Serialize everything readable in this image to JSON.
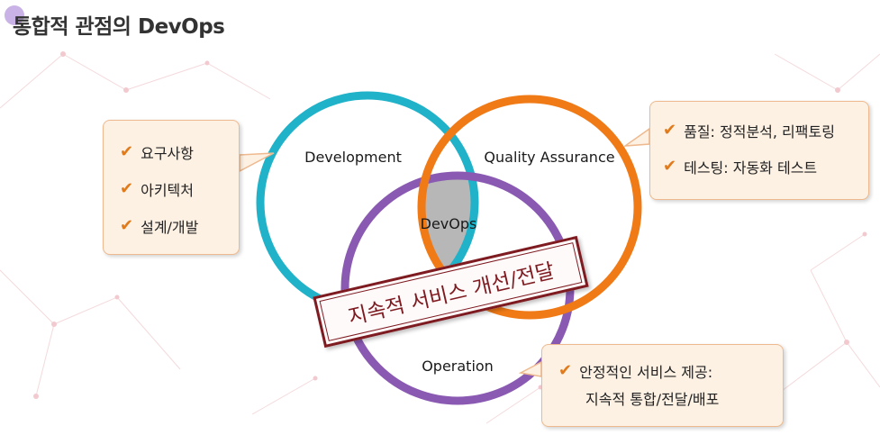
{
  "title": "통합적 관점의 DevOps",
  "venn": {
    "development": "Development",
    "quality_assurance": "Quality Assurance",
    "operation": "Operation",
    "center": "DevOps"
  },
  "banner": "지속적 서비스 개선/전달",
  "development_callout": {
    "items": [
      "요구사항",
      "아키텍처",
      "설계/개발"
    ]
  },
  "qa_callout": {
    "items": [
      "품질: 정적분석, 리팩토링",
      "테스팅: 자동화 테스트"
    ]
  },
  "operation_callout": {
    "line1": "안정적인 서비스 제공:",
    "line2": "지속적 통합/전달/배포"
  },
  "check_icon": "check-icon",
  "colors": {
    "development": "#1fb2c8",
    "quality_assurance": "#f07a16",
    "operation": "#8a5ab2",
    "center": "#b7b7b7",
    "banner": "#7e1b21",
    "check": "#e07a1a",
    "callout_bg": "#fdf1e4"
  }
}
